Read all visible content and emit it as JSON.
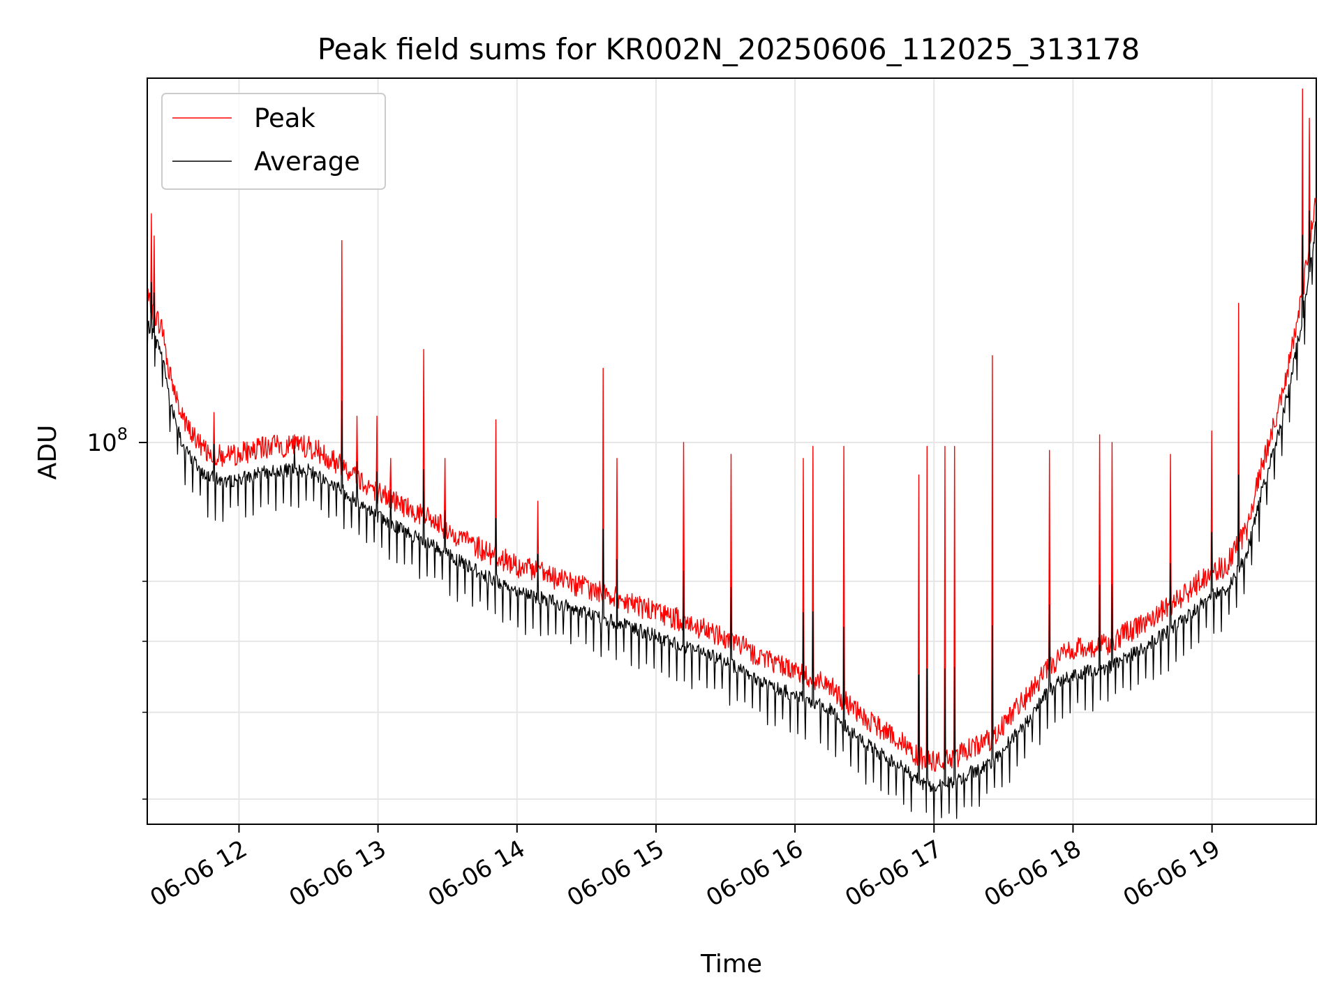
{
  "chart_data": {
    "type": "line",
    "title": "Peak field sums for KR002N_20250606_112025_313178",
    "xlabel": "Time",
    "ylabel": "ADU",
    "x_tick_labels": [
      "06-06 12",
      "06-06 13",
      "06-06 14",
      "06-06 15",
      "06-06 16",
      "06-06 17",
      "06-06 18",
      "06-06 19"
    ],
    "x_tick_hours": [
      12,
      13,
      14,
      15,
      16,
      17,
      18,
      19
    ],
    "xlim_hours": [
      11.34,
      19.75
    ],
    "yscale": "log",
    "ylim": [
      37500000,
      255000000
    ],
    "y_major_ticks": [
      {
        "value": 100000000,
        "base": "10",
        "exp": "8"
      }
    ],
    "y_minor_ticks": [
      40000000,
      50000000,
      60000000,
      70000000
    ],
    "grid": true,
    "legend_position": "upper left",
    "series": [
      {
        "name": "Peak",
        "color": "#ff0000",
        "baseline": {
          "hours": [
            11.34,
            11.45,
            11.5,
            11.6,
            11.75,
            11.9,
            12.0,
            12.25,
            12.5,
            12.75,
            13.0,
            13.25,
            13.5,
            13.75,
            14.0,
            14.25,
            14.5,
            14.75,
            15.0,
            15.25,
            15.5,
            15.75,
            16.0,
            16.25,
            16.4,
            16.55,
            16.75,
            16.9,
            17.0,
            17.15,
            17.25,
            17.4,
            17.55,
            17.7,
            17.8,
            17.9,
            18.0,
            18.25,
            18.5,
            18.7,
            18.9,
            19.0,
            19.1,
            19.25,
            19.35,
            19.45,
            19.55,
            19.65,
            19.75
          ],
          "values": [
            143000000,
            132000000,
            118000000,
            104000000,
            97000000,
            95000000,
            96000000,
            98000000,
            98000000,
            93000000,
            87000000,
            83000000,
            79000000,
            75000000,
            72000000,
            70000000,
            68000000,
            66000000,
            64000000,
            62000000,
            60000000,
            57000000,
            55000000,
            53000000,
            50000000,
            48000000,
            46000000,
            44000000,
            43500000,
            44000000,
            45000000,
            46000000,
            49000000,
            52000000,
            55000000,
            57000000,
            58000000,
            59000000,
            62000000,
            65000000,
            69000000,
            71000000,
            72000000,
            79000000,
            92000000,
            104000000,
            120000000,
            145000000,
            185000000
          ]
        },
        "spikes": [
          {
            "hour": 11.37,
            "value": 180000000
          },
          {
            "hour": 11.39,
            "value": 170000000
          },
          {
            "hour": 11.82,
            "value": 108000000
          },
          {
            "hour": 12.4,
            "value": 102000000
          },
          {
            "hour": 12.74,
            "value": 168000000
          },
          {
            "hour": 12.85,
            "value": 107000000
          },
          {
            "hour": 12.99,
            "value": 107000000
          },
          {
            "hour": 13.09,
            "value": 96000000
          },
          {
            "hour": 13.33,
            "value": 127000000
          },
          {
            "hour": 13.48,
            "value": 96000000
          },
          {
            "hour": 13.85,
            "value": 106000000
          },
          {
            "hour": 14.15,
            "value": 86000000
          },
          {
            "hour": 14.62,
            "value": 121000000
          },
          {
            "hour": 14.72,
            "value": 96000000
          },
          {
            "hour": 15.2,
            "value": 100000000
          },
          {
            "hour": 15.54,
            "value": 97000000
          },
          {
            "hour": 16.06,
            "value": 96000000
          },
          {
            "hour": 16.13,
            "value": 99000000
          },
          {
            "hour": 16.35,
            "value": 99000000
          },
          {
            "hour": 16.89,
            "value": 92000000
          },
          {
            "hour": 16.95,
            "value": 99000000
          },
          {
            "hour": 17.08,
            "value": 99000000
          },
          {
            "hour": 17.15,
            "value": 99000000
          },
          {
            "hour": 17.42,
            "value": 125000000
          },
          {
            "hour": 17.83,
            "value": 98000000
          },
          {
            "hour": 18.19,
            "value": 102000000
          },
          {
            "hour": 18.28,
            "value": 100000000
          },
          {
            "hour": 18.7,
            "value": 97000000
          },
          {
            "hour": 19.0,
            "value": 103000000
          },
          {
            "hour": 19.19,
            "value": 143000000
          },
          {
            "hour": 19.65,
            "value": 248000000
          },
          {
            "hour": 19.7,
            "value": 230000000
          }
        ]
      },
      {
        "name": "Average",
        "color": "#000000",
        "baseline_ratio": 0.95,
        "dip_ratio": 0.88
      }
    ]
  }
}
